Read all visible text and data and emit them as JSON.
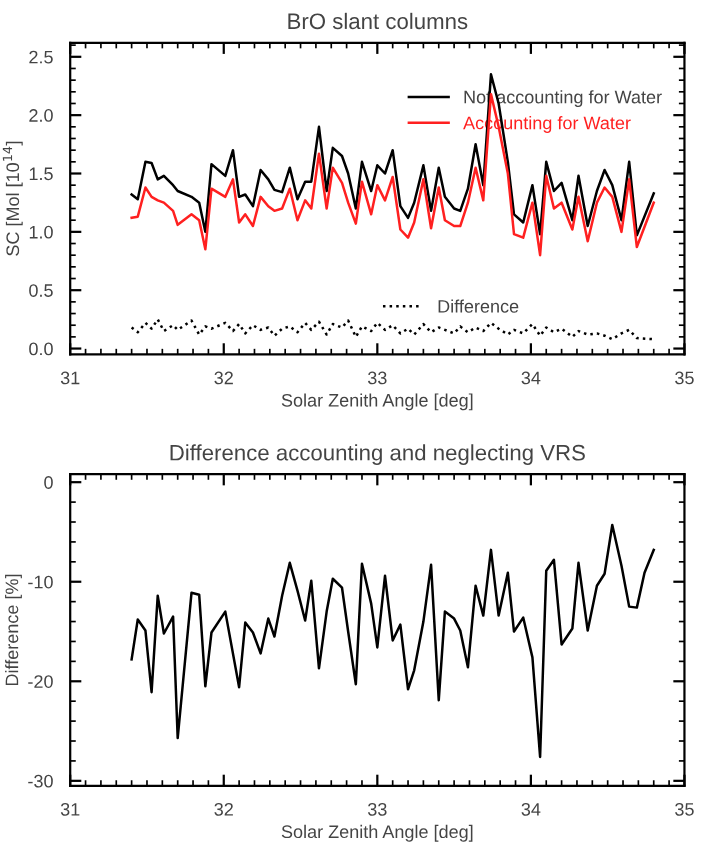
{
  "chart_data": [
    {
      "type": "line",
      "title": "BrO slant columns",
      "xlabel": "Solar Zenith Angle [deg]",
      "ylabel": "SC [Mol [10$^{14}$]",
      "x": [
        31.4,
        31.44,
        31.49,
        31.53,
        31.57,
        31.61,
        31.67,
        31.7,
        31.79,
        31.84,
        31.88,
        31.92,
        32.01,
        32.06,
        32.1,
        32.14,
        32.19,
        32.24,
        32.29,
        32.33,
        32.38,
        32.43,
        32.48,
        32.53,
        32.57,
        32.62,
        32.67,
        32.71,
        32.77,
        32.81,
        32.86,
        32.9,
        32.96,
        33.0,
        33.05,
        33.1,
        33.15,
        33.2,
        33.24,
        33.3,
        33.35,
        33.4,
        33.44,
        33.5,
        33.54,
        33.59,
        33.64,
        33.69,
        33.74,
        33.79,
        33.85,
        33.89,
        33.95,
        34.01,
        34.06,
        34.1,
        34.15,
        34.2,
        34.27,
        34.31,
        34.37,
        34.43,
        34.48,
        34.53,
        34.59,
        34.64,
        34.69,
        34.8
      ],
      "series": [
        {
          "name": "Not accounting for Water",
          "color": "#000000",
          "line_style": "solid",
          "values": [
            1.32,
            1.28,
            1.6,
            1.59,
            1.45,
            1.48,
            1.4,
            1.35,
            1.3,
            1.25,
            1.0,
            1.58,
            1.48,
            1.7,
            1.3,
            1.32,
            1.22,
            1.53,
            1.45,
            1.36,
            1.34,
            1.55,
            1.28,
            1.43,
            1.43,
            1.9,
            1.35,
            1.72,
            1.65,
            1.5,
            1.2,
            1.6,
            1.35,
            1.57,
            1.5,
            1.7,
            1.22,
            1.12,
            1.25,
            1.57,
            1.18,
            1.55,
            1.3,
            1.2,
            1.18,
            1.37,
            1.75,
            1.4,
            2.35,
            2.1,
            1.6,
            1.15,
            1.08,
            1.4,
            0.98,
            1.6,
            1.35,
            1.42,
            1.1,
            1.48,
            1.05,
            1.35,
            1.53,
            1.4,
            1.1,
            1.6,
            0.97,
            1.33
          ]
        },
        {
          "name": "Accounting for Water",
          "color": "#ff2020",
          "line_style": "solid",
          "values": [
            1.12,
            1.13,
            1.38,
            1.3,
            1.27,
            1.25,
            1.18,
            1.06,
            1.15,
            1.1,
            0.85,
            1.37,
            1.3,
            1.45,
            1.08,
            1.15,
            1.05,
            1.3,
            1.22,
            1.18,
            1.2,
            1.37,
            1.1,
            1.27,
            1.2,
            1.67,
            1.2,
            1.55,
            1.42,
            1.25,
            1.07,
            1.43,
            1.15,
            1.4,
            1.27,
            1.47,
            1.02,
            0.95,
            1.08,
            1.45,
            1.03,
            1.38,
            1.1,
            1.05,
            1.05,
            1.25,
            1.55,
            1.27,
            2.18,
            1.9,
            1.5,
            0.98,
            0.95,
            1.25,
            0.8,
            1.48,
            1.2,
            1.25,
            1.02,
            1.3,
            0.92,
            1.25,
            1.38,
            1.3,
            1.0,
            1.45,
            0.87,
            1.25
          ]
        },
        {
          "name": "Difference",
          "color": "#000000",
          "line_style": "dotted",
          "values": [
            0.18,
            0.14,
            0.22,
            0.17,
            0.25,
            0.15,
            0.2,
            0.16,
            0.24,
            0.12,
            0.19,
            0.17,
            0.22,
            0.15,
            0.21,
            0.13,
            0.2,
            0.16,
            0.18,
            0.11,
            0.17,
            0.19,
            0.14,
            0.22,
            0.16,
            0.23,
            0.12,
            0.21,
            0.18,
            0.24,
            0.1,
            0.19,
            0.15,
            0.22,
            0.16,
            0.2,
            0.13,
            0.17,
            0.12,
            0.21,
            0.14,
            0.18,
            0.16,
            0.13,
            0.19,
            0.14,
            0.18,
            0.15,
            0.22,
            0.17,
            0.12,
            0.16,
            0.13,
            0.21,
            0.11,
            0.18,
            0.14,
            0.17,
            0.1,
            0.15,
            0.12,
            0.13,
            0.11,
            0.08,
            0.13,
            0.16,
            0.09,
            0.08
          ]
        }
      ],
      "xlim": [
        31,
        35
      ],
      "xticks": [
        31,
        32,
        33,
        34,
        35
      ],
      "ylim": [
        -0.05,
        2.62
      ],
      "yticks": [
        {
          "value": 0,
          "label": "0.0"
        },
        {
          "value": 0.5,
          "label": "0.5"
        },
        {
          "value": 1.0,
          "label": "1.0"
        },
        {
          "value": 1.5,
          "label": "1.5"
        },
        {
          "value": 2.0,
          "label": "2.0"
        },
        {
          "value": 2.5,
          "label": "2.5"
        }
      ],
      "legend": "right",
      "grid": false
    },
    {
      "type": "line",
      "title": "Difference accounting and neglecting VRS",
      "xlabel": "Solar Zenith Angle [deg]",
      "ylabel": "Difference [%]",
      "x": [
        31.4,
        31.44,
        31.49,
        31.53,
        31.57,
        31.61,
        31.67,
        31.7,
        31.79,
        31.84,
        31.88,
        31.92,
        32.01,
        32.1,
        32.14,
        32.19,
        32.24,
        32.29,
        32.33,
        32.38,
        32.43,
        32.48,
        32.53,
        32.57,
        32.62,
        32.67,
        32.71,
        32.77,
        32.81,
        32.86,
        32.9,
        32.96,
        33.0,
        33.05,
        33.1,
        33.15,
        33.2,
        33.24,
        33.3,
        33.35,
        33.4,
        33.44,
        33.5,
        33.54,
        33.59,
        33.64,
        33.69,
        33.74,
        33.79,
        33.85,
        33.89,
        33.95,
        34.01,
        34.06,
        34.1,
        34.15,
        34.2,
        34.27,
        34.31,
        34.37,
        34.43,
        34.48,
        34.53,
        34.59,
        34.64,
        34.69,
        34.74,
        34.8
      ],
      "series": [
        {
          "color": "#000000",
          "line_style": "solid",
          "values": [
            -17.8,
            -13.8,
            -14.9,
            -21.1,
            -11.4,
            -15.2,
            -13.5,
            -25.7,
            -11.1,
            -11.3,
            -20.5,
            -15.1,
            -13.0,
            -20.6,
            -14.1,
            -15.1,
            -17.2,
            -13.7,
            -15.5,
            -11.4,
            -8.1,
            -10.9,
            -13.9,
            -9.9,
            -18.7,
            -13.0,
            -9.7,
            -10.6,
            -15.0,
            -20.3,
            -8.2,
            -12.2,
            -16.6,
            -9.4,
            -15.9,
            -14.3,
            -20.8,
            -18.9,
            -14.0,
            -8.3,
            -21.9,
            -13.0,
            -13.7,
            -14.9,
            -18.6,
            -10.4,
            -13.4,
            -6.8,
            -13.4,
            -9.1,
            -15.0,
            -13.6,
            -17.6,
            -27.6,
            -8.9,
            -7.8,
            -16.3,
            -14.7,
            -8.1,
            -14.9,
            -10.4,
            -9.2,
            -4.3,
            -8.4,
            -12.5,
            -12.6,
            -9.1,
            -6.8
          ]
        }
      ],
      "xlim": [
        31,
        35
      ],
      "xticks": [
        31,
        32,
        33,
        34,
        35
      ],
      "ylim": [
        -30.5,
        0.8
      ],
      "yticks": [
        {
          "value": -30,
          "label": "-30"
        },
        {
          "value": -20,
          "label": "-20"
        },
        {
          "value": -10,
          "label": "-10"
        },
        {
          "value": 0,
          "label": "0"
        }
      ],
      "grid": false
    }
  ]
}
